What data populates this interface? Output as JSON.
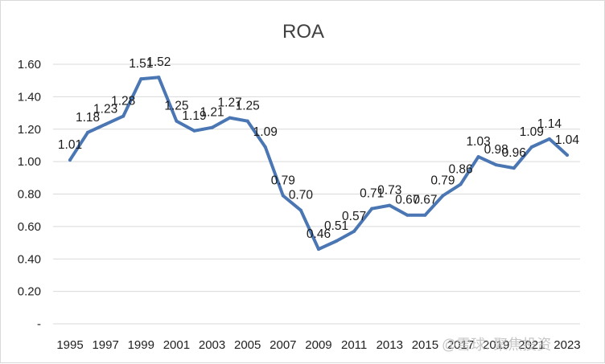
{
  "chart_data": {
    "type": "line",
    "title": "ROA",
    "xlabel": "",
    "ylabel": "",
    "ylim": [
      0,
      1.6
    ],
    "y_ticks": [
      {
        "value": 0,
        "label": "-"
      },
      {
        "value": 0.2,
        "label": "0.20"
      },
      {
        "value": 0.4,
        "label": "0.40"
      },
      {
        "value": 0.6,
        "label": "0.60"
      },
      {
        "value": 0.8,
        "label": "0.80"
      },
      {
        "value": 1.0,
        "label": "1.00"
      },
      {
        "value": 1.2,
        "label": "1.20"
      },
      {
        "value": 1.4,
        "label": "1.40"
      },
      {
        "value": 1.6,
        "label": "1.60"
      }
    ],
    "grid": true,
    "legend": "none",
    "x": [
      1995,
      1996,
      1997,
      1998,
      1999,
      2000,
      2001,
      2002,
      2003,
      2004,
      2005,
      2006,
      2007,
      2008,
      2009,
      2010,
      2011,
      2012,
      2013,
      2014,
      2015,
      2016,
      2017,
      2018,
      2019,
      2020,
      2021,
      2022,
      2023
    ],
    "x_tick_labels": [
      "1995",
      "1997",
      "1999",
      "2001",
      "2003",
      "2005",
      "2007",
      "2009",
      "2011",
      "2013",
      "2015",
      "2017",
      "2019",
      "2021",
      "2023"
    ],
    "series": [
      {
        "values": [
          1.01,
          1.18,
          1.23,
          1.28,
          1.51,
          1.52,
          1.25,
          1.19,
          1.21,
          1.27,
          1.25,
          1.09,
          0.79,
          0.7,
          0.46,
          0.51,
          0.57,
          0.71,
          0.73,
          0.67,
          0.67,
          0.79,
          0.86,
          1.03,
          0.98,
          0.96,
          1.09,
          1.14,
          1.04
        ],
        "labels": [
          "1.01",
          "1.18",
          "1.23",
          "1.28",
          "1.51",
          "1.52",
          "1.25",
          "1.19",
          "1.21",
          "1.27",
          "1.25",
          "1.09",
          "0.79",
          "0.70",
          "0.46",
          "0.51",
          "0.57",
          "0.71",
          "0.73",
          "0.67",
          "0.67",
          "0.79",
          "0.86",
          "1.03",
          "0.98",
          "0.96",
          "1.09",
          "1.14",
          "1.04"
        ],
        "color": "#4a77b4"
      }
    ]
  },
  "watermark": "@雪球: 聚焦投资"
}
